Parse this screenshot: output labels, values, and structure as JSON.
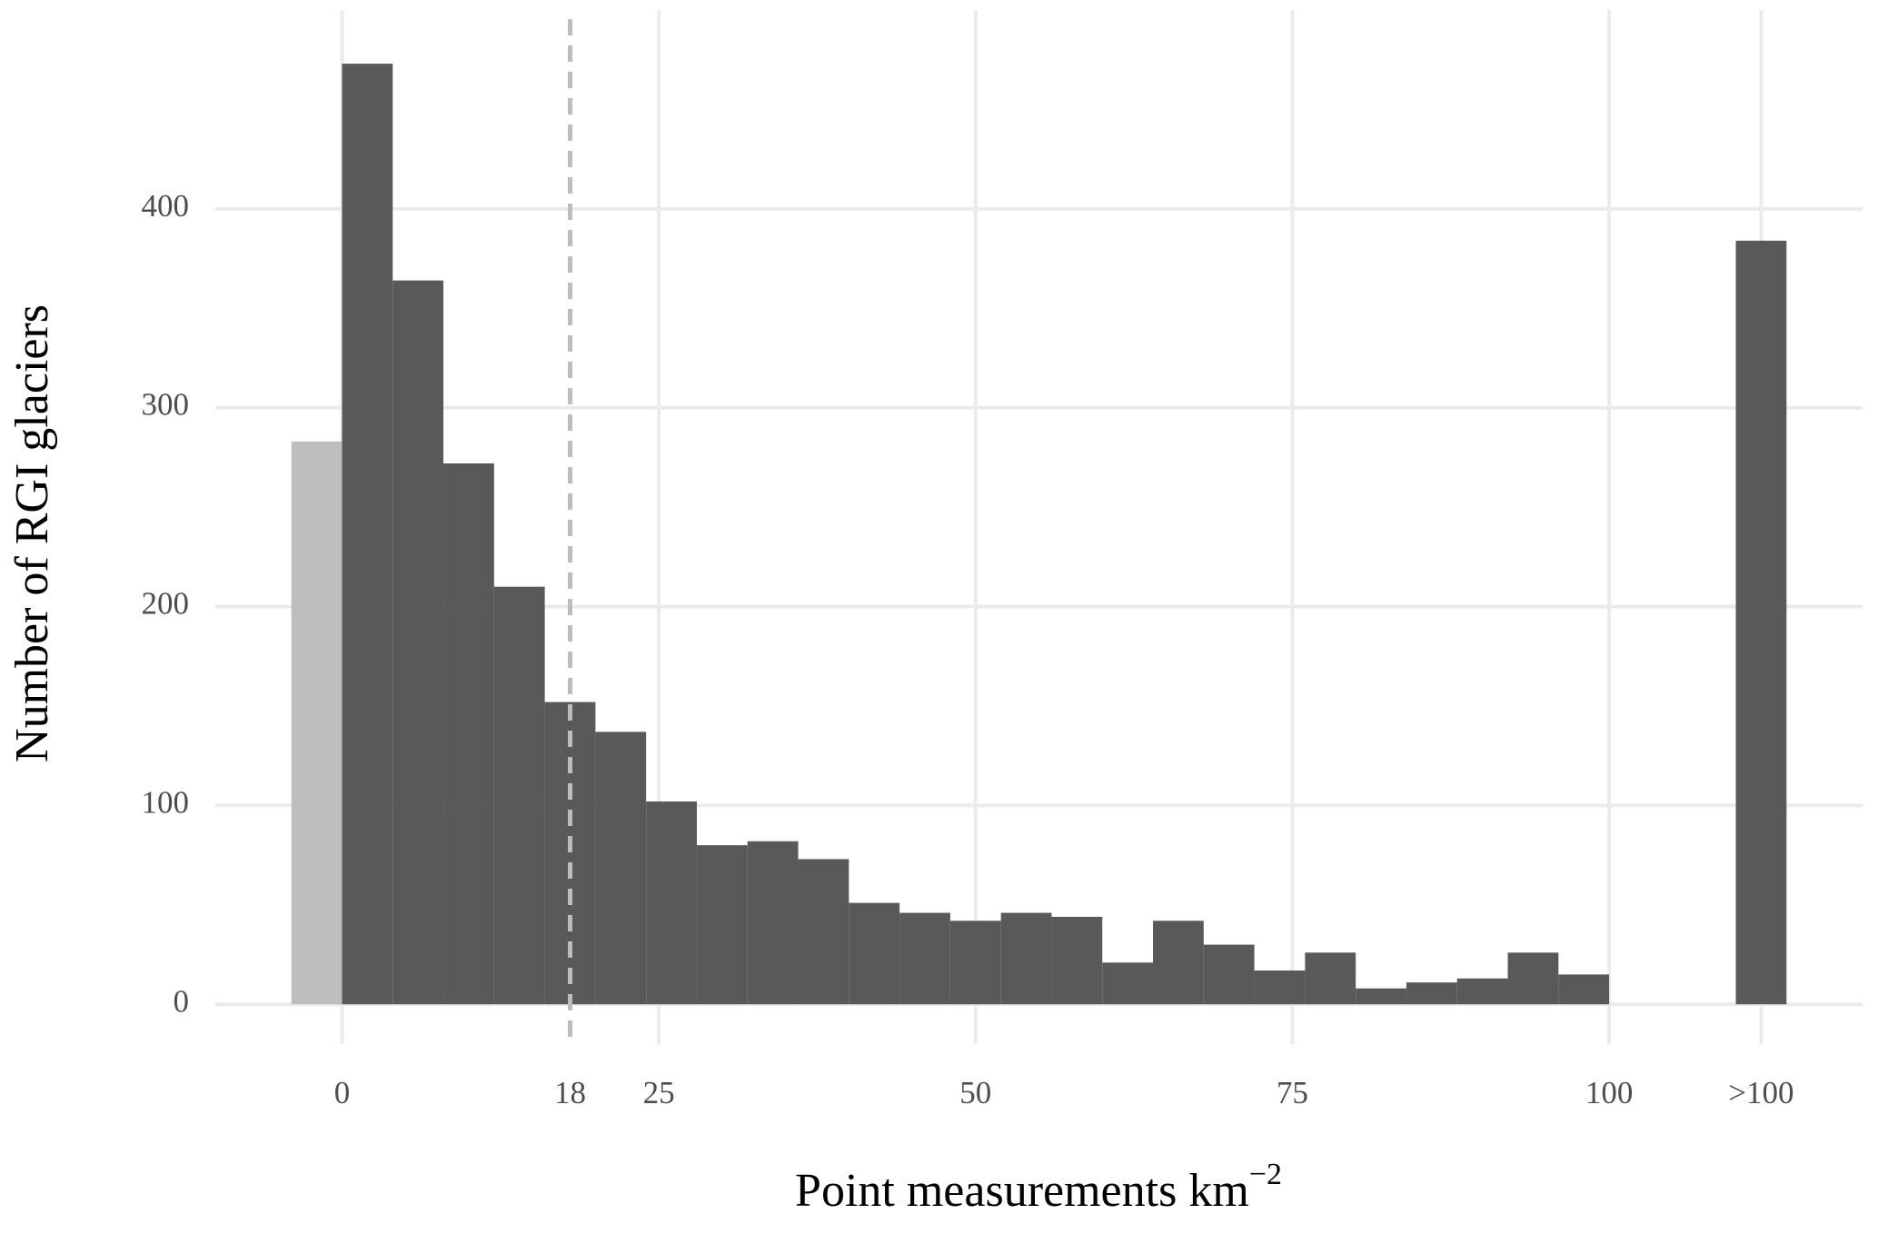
{
  "chart_data": {
    "type": "histogram",
    "xlabel": "Point measurements km",
    "xlabel_superscript": "−2",
    "ylabel": "Number of RGI glaciers",
    "bins": [
      -4,
      0,
      4,
      8,
      12,
      16,
      20,
      24,
      28,
      32,
      36,
      40,
      44,
      48,
      52,
      56,
      60,
      64,
      68,
      72,
      76,
      80,
      84,
      88,
      92,
      96,
      100
    ],
    "values": [
      283,
      473,
      364,
      272,
      210,
      152,
      137,
      102,
      80,
      82,
      73,
      51,
      46,
      42,
      46,
      44,
      21,
      42,
      30,
      17,
      26,
      8,
      11,
      13,
      26,
      15
    ],
    "color": "#595959",
    "zero_bin_color": "#bebebe",
    "overflow": {
      "bins": [
        110,
        114
      ],
      "value": 384
    },
    "vline": {
      "value": 18,
      "color": "#bdbdbd",
      "dashed": true
    },
    "xlim": [
      -10,
      120
    ],
    "ylim": [
      -20,
      500
    ],
    "xticks": [
      0,
      18,
      25,
      50,
      75,
      100,
      {
        "value": 112,
        "label": ">100"
      }
    ],
    "yticks": [
      0,
      100,
      200,
      300,
      400
    ],
    "grid": true
  }
}
